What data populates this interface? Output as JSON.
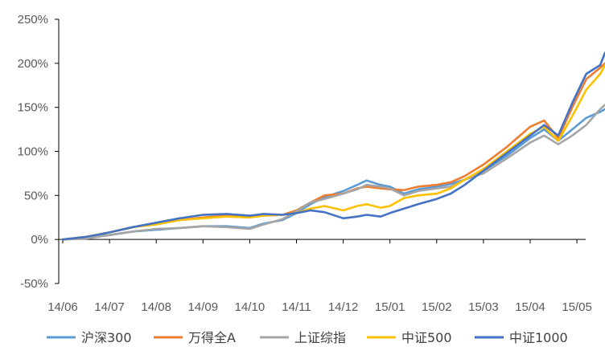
{
  "chart_data": {
    "type": "line",
    "title": "",
    "xlabel": "",
    "ylabel": "",
    "ylim": [
      -50,
      250
    ],
    "y_ticks": [
      "-50%",
      "0%",
      "50%",
      "100%",
      "150%",
      "200%",
      "250%"
    ],
    "x_ticks": [
      "14/06",
      "14/07",
      "14/08",
      "14/09",
      "14/10",
      "14/11",
      "14/12",
      "15/01",
      "15/02",
      "15/03",
      "15/04",
      "15/05"
    ],
    "x_range": [
      0,
      11.6
    ],
    "grid": false,
    "legend_position": "bottom",
    "series": [
      {
        "name": "沪深300",
        "color": "#5B9BD5",
        "points": [
          [
            0,
            0
          ],
          [
            0.5,
            2
          ],
          [
            1,
            5
          ],
          [
            1.5,
            9
          ],
          [
            2,
            11
          ],
          [
            2.5,
            13
          ],
          [
            3,
            15
          ],
          [
            3.5,
            15
          ],
          [
            4,
            13
          ],
          [
            4.3,
            18
          ],
          [
            4.7,
            22
          ],
          [
            5,
            30
          ],
          [
            5.3,
            40
          ],
          [
            5.6,
            48
          ],
          [
            6,
            55
          ],
          [
            6.3,
            62
          ],
          [
            6.5,
            67
          ],
          [
            6.8,
            62
          ],
          [
            7,
            60
          ],
          [
            7.3,
            52
          ],
          [
            7.6,
            57
          ],
          [
            8,
            60
          ],
          [
            8.3,
            63
          ],
          [
            8.6,
            68
          ],
          [
            9,
            78
          ],
          [
            9.5,
            95
          ],
          [
            10,
            115
          ],
          [
            10.3,
            125
          ],
          [
            10.6,
            112
          ],
          [
            10.9,
            125
          ],
          [
            11.2,
            138
          ],
          [
            11.5,
            145
          ],
          [
            11.6,
            148
          ]
        ]
      },
      {
        "name": "万得全A",
        "color": "#ED7D31",
        "points": [
          [
            0,
            0
          ],
          [
            0.5,
            3
          ],
          [
            1,
            8
          ],
          [
            1.5,
            14
          ],
          [
            2,
            18
          ],
          [
            2.5,
            22
          ],
          [
            3,
            25
          ],
          [
            3.5,
            27
          ],
          [
            4,
            26
          ],
          [
            4.3,
            27
          ],
          [
            4.7,
            28
          ],
          [
            5,
            33
          ],
          [
            5.3,
            42
          ],
          [
            5.6,
            50
          ],
          [
            6,
            52
          ],
          [
            6.3,
            58
          ],
          [
            6.5,
            60
          ],
          [
            6.8,
            58
          ],
          [
            7,
            57
          ],
          [
            7.3,
            56
          ],
          [
            7.6,
            60
          ],
          [
            8,
            62
          ],
          [
            8.3,
            65
          ],
          [
            8.6,
            72
          ],
          [
            9,
            85
          ],
          [
            9.5,
            105
          ],
          [
            10,
            128
          ],
          [
            10.3,
            135
          ],
          [
            10.6,
            115
          ],
          [
            10.9,
            150
          ],
          [
            11.2,
            182
          ],
          [
            11.5,
            195
          ],
          [
            11.6,
            200
          ]
        ]
      },
      {
        "name": "上证综指",
        "color": "#A5A5A5",
        "points": [
          [
            0,
            0
          ],
          [
            0.5,
            1
          ],
          [
            1,
            5
          ],
          [
            1.5,
            9
          ],
          [
            2,
            12
          ],
          [
            2.5,
            13
          ],
          [
            3,
            15
          ],
          [
            3.5,
            14
          ],
          [
            4,
            12
          ],
          [
            4.3,
            17
          ],
          [
            4.7,
            23
          ],
          [
            5,
            32
          ],
          [
            5.3,
            42
          ],
          [
            5.6,
            46
          ],
          [
            6,
            52
          ],
          [
            6.3,
            57
          ],
          [
            6.5,
            62
          ],
          [
            6.8,
            60
          ],
          [
            7,
            58
          ],
          [
            7.3,
            50
          ],
          [
            7.6,
            55
          ],
          [
            8,
            58
          ],
          [
            8.3,
            60
          ],
          [
            8.6,
            68
          ],
          [
            9,
            75
          ],
          [
            9.5,
            92
          ],
          [
            10,
            110
          ],
          [
            10.3,
            118
          ],
          [
            10.6,
            108
          ],
          [
            10.9,
            118
          ],
          [
            11.2,
            130
          ],
          [
            11.5,
            148
          ],
          [
            11.6,
            153
          ]
        ]
      },
      {
        "name": "中证500",
        "color": "#FFC000",
        "points": [
          [
            0,
            0
          ],
          [
            0.5,
            3
          ],
          [
            1,
            8
          ],
          [
            1.5,
            14
          ],
          [
            2,
            17
          ],
          [
            2.5,
            22
          ],
          [
            3,
            24
          ],
          [
            3.5,
            26
          ],
          [
            4,
            25
          ],
          [
            4.3,
            27
          ],
          [
            4.7,
            28
          ],
          [
            5,
            30
          ],
          [
            5.3,
            35
          ],
          [
            5.6,
            38
          ],
          [
            6,
            33
          ],
          [
            6.3,
            38
          ],
          [
            6.5,
            40
          ],
          [
            6.8,
            36
          ],
          [
            7,
            38
          ],
          [
            7.3,
            47
          ],
          [
            7.6,
            50
          ],
          [
            8,
            52
          ],
          [
            8.3,
            58
          ],
          [
            8.6,
            68
          ],
          [
            9,
            80
          ],
          [
            9.5,
            100
          ],
          [
            10,
            120
          ],
          [
            10.3,
            128
          ],
          [
            10.6,
            112
          ],
          [
            10.9,
            140
          ],
          [
            11.2,
            170
          ],
          [
            11.5,
            188
          ],
          [
            11.6,
            198
          ]
        ]
      },
      {
        "name": "中证1000",
        "color": "#4472C4",
        "points": [
          [
            0,
            0
          ],
          [
            0.5,
            3
          ],
          [
            1,
            8
          ],
          [
            1.5,
            14
          ],
          [
            2,
            19
          ],
          [
            2.5,
            24
          ],
          [
            3,
            28
          ],
          [
            3.5,
            29
          ],
          [
            4,
            27
          ],
          [
            4.3,
            29
          ],
          [
            4.7,
            28
          ],
          [
            5,
            30
          ],
          [
            5.3,
            33
          ],
          [
            5.6,
            31
          ],
          [
            6,
            24
          ],
          [
            6.3,
            26
          ],
          [
            6.5,
            28
          ],
          [
            6.8,
            26
          ],
          [
            7,
            30
          ],
          [
            7.3,
            35
          ],
          [
            7.6,
            40
          ],
          [
            8,
            46
          ],
          [
            8.3,
            52
          ],
          [
            8.6,
            62
          ],
          [
            9,
            78
          ],
          [
            9.5,
            98
          ],
          [
            10,
            118
          ],
          [
            10.3,
            130
          ],
          [
            10.6,
            118
          ],
          [
            10.9,
            155
          ],
          [
            11.2,
            188
          ],
          [
            11.5,
            198
          ],
          [
            11.6,
            212
          ]
        ]
      }
    ]
  }
}
